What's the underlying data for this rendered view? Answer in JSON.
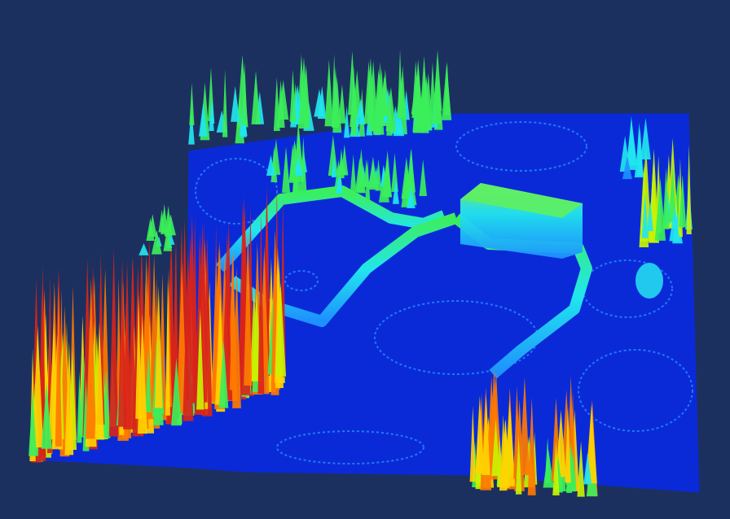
{
  "scene": {
    "kind": "3d-surface-height-map",
    "colormap": [
      "#0a1fd6",
      "#1e90ff",
      "#21e6ee",
      "#3bef5a",
      "#c8f200",
      "#ffd400",
      "#ff7a00",
      "#d9241a"
    ],
    "background": "#1c3060",
    "base_color": "#0a2ad8"
  }
}
